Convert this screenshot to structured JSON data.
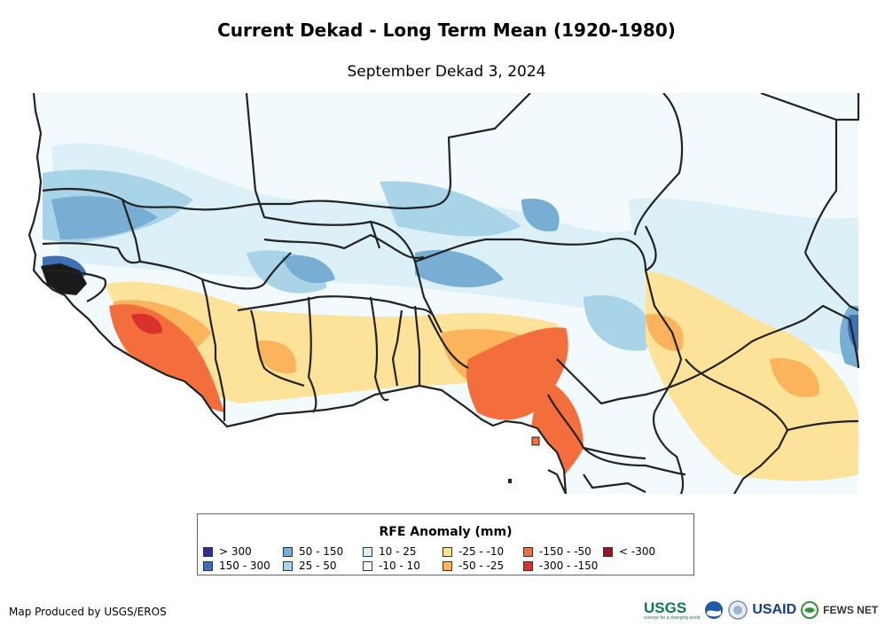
{
  "title": "Current Dekad - Long Term Mean (1920-1980)",
  "subtitle": "September Dekad 3, 2024",
  "legend": {
    "title": "RFE Anomaly (mm)",
    "items": [
      {
        "label": "> 300",
        "color": "#2b2f8f"
      },
      {
        "label": "150 - 300",
        "color": "#3f6fb4"
      },
      {
        "label": "50 - 150",
        "color": "#78aed3"
      },
      {
        "label": "25 - 50",
        "color": "#a9d4e8"
      },
      {
        "label": "10 - 25",
        "color": "#dcf0f7"
      },
      {
        "label": "-10 - 10",
        "color": "#ffffff"
      },
      {
        "label": "-25 - -10",
        "color": "#fde29a"
      },
      {
        "label": "-50 - -25",
        "color": "#fbb35c"
      },
      {
        "label": "-150 - -50",
        "color": "#f36e3c"
      },
      {
        "label": "-300 - -150",
        "color": "#d8322a"
      },
      {
        "label": "< -300",
        "color": "#a50f26"
      }
    ]
  },
  "credit": "Map Produced by USGS/EROS",
  "logos": {
    "usgs": "USGS",
    "usgs_tagline": "science for a changing world",
    "usaid": "USAID",
    "fews": "FEWS NET"
  },
  "colors": {
    "border": "#222222",
    "ocean": "#ffffff",
    "coast_dark": "#1a1a1a"
  }
}
